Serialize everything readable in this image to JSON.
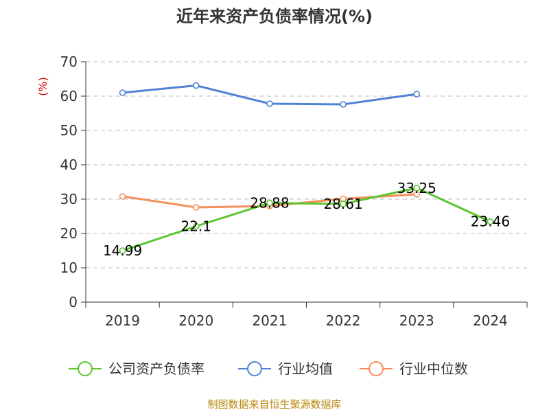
{
  "chart_data": {
    "type": "line",
    "title": "近年来资产负债率情况(%)",
    "ylabel": "(%)",
    "xlabel": "",
    "categories": [
      "2019",
      "2020",
      "2021",
      "2022",
      "2023",
      "2024"
    ],
    "ylim": [
      0,
      70
    ],
    "yticks": [
      0,
      10,
      20,
      30,
      40,
      50,
      60,
      70
    ],
    "grid": true,
    "legend_position": "bottom",
    "series": [
      {
        "name": "公司资产负债率",
        "color": "#5cc52f",
        "values": [
          14.99,
          22.1,
          28.88,
          28.61,
          33.25,
          23.46
        ],
        "show_labels": true
      },
      {
        "name": "行业均值",
        "color": "#4f81d4",
        "values": [
          61.0,
          63.1,
          57.8,
          57.6,
          60.6,
          null
        ],
        "show_labels": false
      },
      {
        "name": "行业中位数",
        "color": "#f58f59",
        "values": [
          30.8,
          27.6,
          28.0,
          30.1,
          31.4,
          null
        ],
        "show_labels": false
      }
    ]
  },
  "source_text": "制图数据来自恒生聚源数据库",
  "colors": {
    "ylabel": "#cc0000",
    "source": "#b8860b",
    "grid": "#bbbbbb",
    "axis": "#333333"
  }
}
